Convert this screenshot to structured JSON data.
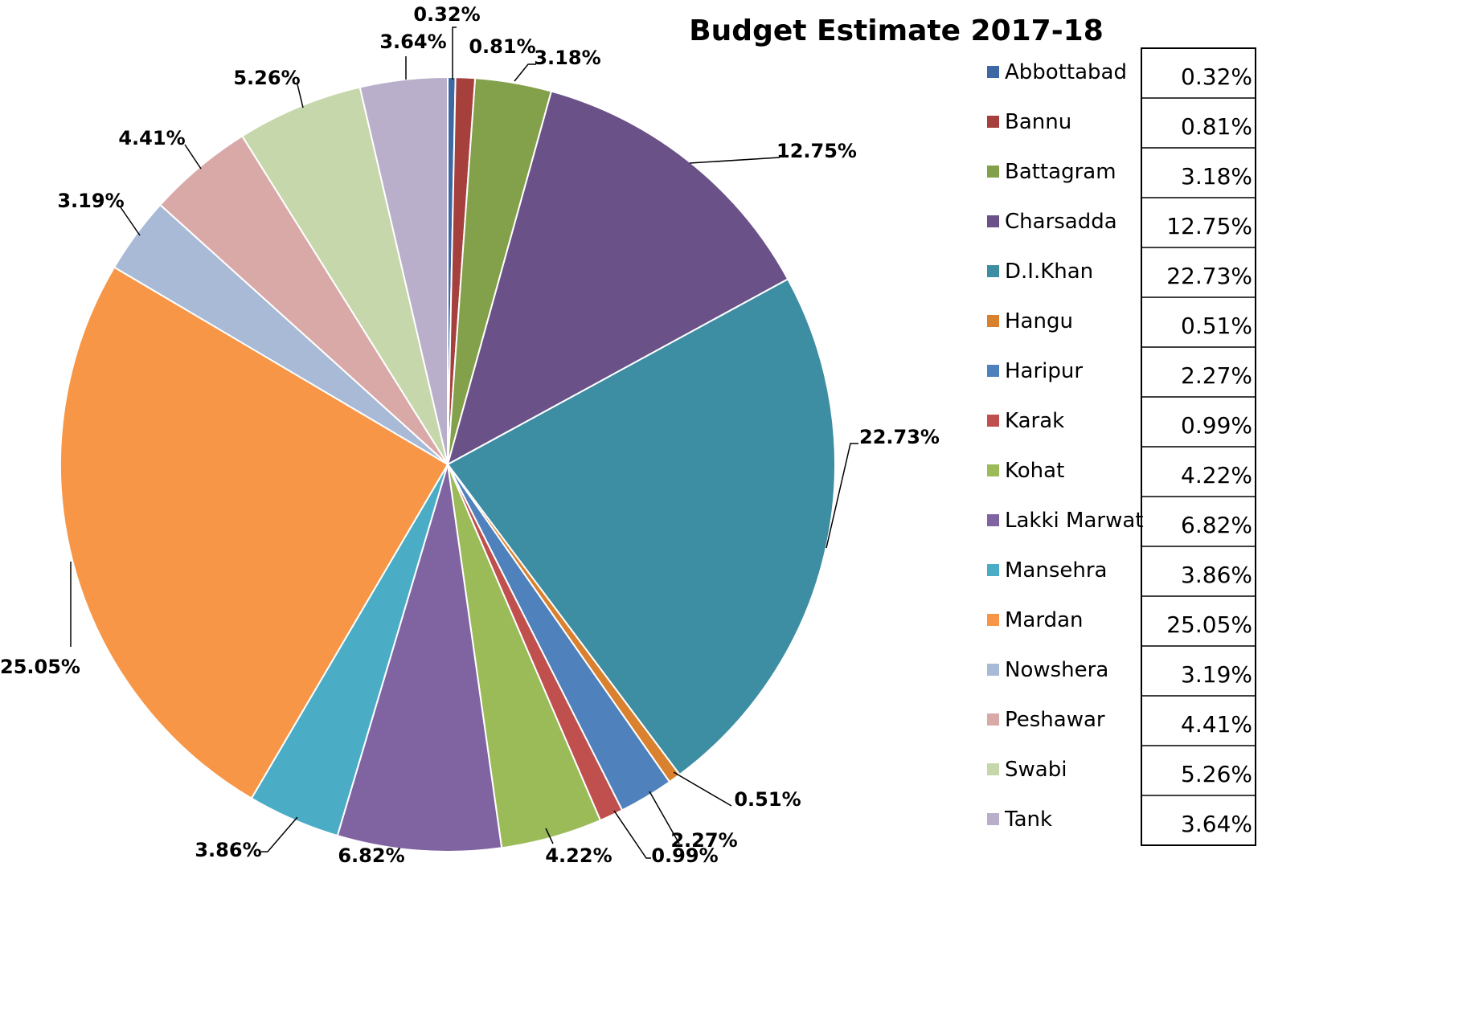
{
  "chart_data": {
    "type": "pie",
    "title": "Budget Estimate 2017-18",
    "categories": [
      "Abbottabad",
      "Bannu",
      "Battagram",
      "Charsadda",
      "D.I.Khan",
      "Hangu",
      "Haripur",
      "Karak",
      "Kohat",
      "Lakki Marwat",
      "Mansehra",
      "Mardan",
      "Nowshera",
      "Peshawar",
      "Swabi",
      "Tank"
    ],
    "values": [
      0.32,
      0.81,
      3.18,
      12.75,
      22.73,
      0.51,
      2.27,
      0.99,
      4.22,
      6.82,
      3.86,
      25.05,
      3.19,
      4.41,
      5.26,
      3.64
    ],
    "labels": [
      "0.32%",
      "0.81%",
      "3.18%",
      "12.75%",
      "22.73%",
      "0.51%",
      "2.27%",
      "0.99%",
      "4.22%",
      "6.82%",
      "3.86%",
      "25.05%",
      "3.19%",
      "4.41%",
      "5.26%",
      "3.64%"
    ],
    "colors": [
      "#3D68A3",
      "#A5403D",
      "#83A04A",
      "#6A5188",
      "#3D8DA3",
      "#D9812F",
      "#4F81BD",
      "#C0504D",
      "#9BBB59",
      "#8064A2",
      "#4BACC6",
      "#F79646",
      "#A9BAD7",
      "#D9A9A8",
      "#C6D7AC",
      "#B9AFCB"
    ],
    "legend_position": "right",
    "table_values": [
      "0.32%",
      "0.81%",
      "3.18%",
      "12.75%",
      "22.73%",
      "0.51%",
      "2.27%",
      "0.99%",
      "4.22%",
      "6.82%",
      "3.86%",
      "25.05%",
      "3.19%",
      "4.41%",
      "5.26%",
      "3.64%"
    ]
  }
}
